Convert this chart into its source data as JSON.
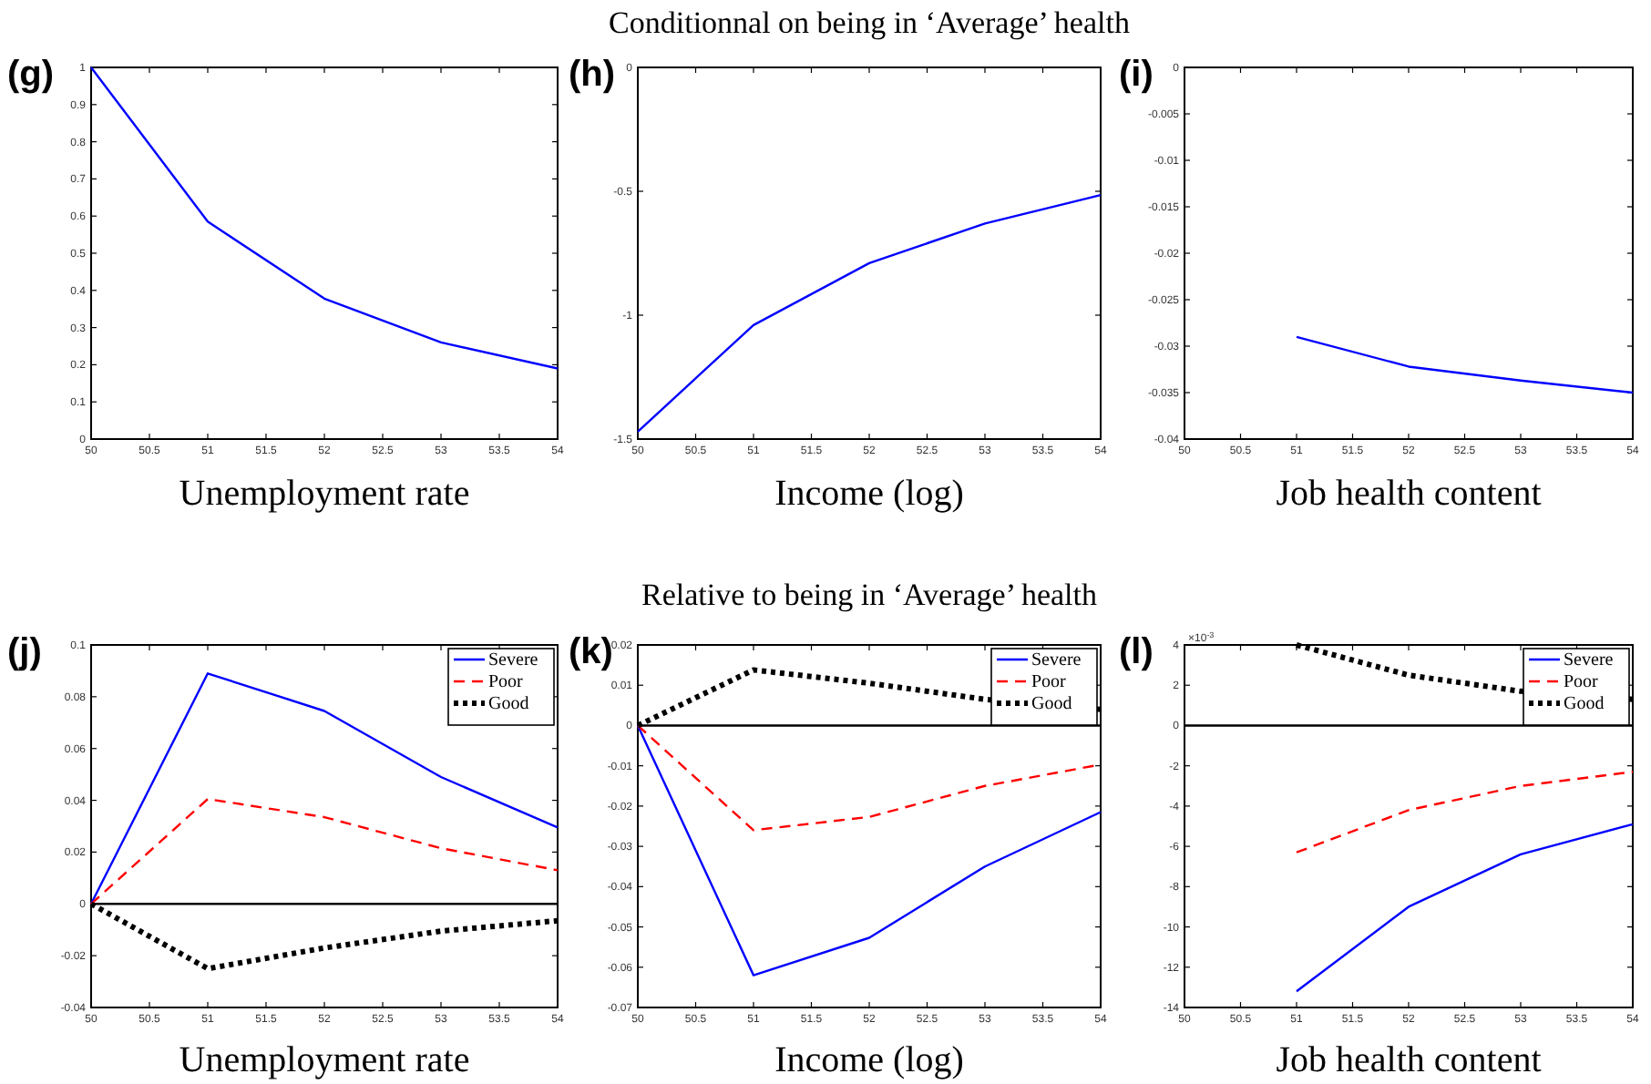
{
  "chart_data": [
    {
      "type": "line",
      "xlabel": "Unemployment rate",
      "annotations": [
        "(g)"
      ],
      "x": [
        50,
        51,
        52,
        53,
        54
      ],
      "xlim": [
        50,
        54
      ],
      "xticks": [
        50,
        50.5,
        51,
        51.5,
        52,
        52.5,
        53,
        53.5,
        54
      ],
      "ylim": [
        0,
        1
      ],
      "yticks": [
        0,
        0.1,
        0.2,
        0.3,
        0.4,
        0.5,
        0.6,
        0.7,
        0.8,
        0.9,
        1
      ],
      "grid": false,
      "legend": false,
      "series": [
        {
          "color": "#0000ff",
          "line_style": "solid",
          "values": [
            1,
            0.585,
            0.378,
            0.26,
            0.19
          ]
        }
      ]
    },
    {
      "type": "line",
      "title": "Conditionnal on being in ‘Average’ health",
      "xlabel": "Income (log)",
      "annotations": [
        "(h)"
      ],
      "x": [
        50,
        51,
        52,
        53,
        54
      ],
      "xlim": [
        50,
        54
      ],
      "xticks": [
        50,
        50.5,
        51,
        51.5,
        52,
        52.5,
        53,
        53.5,
        54
      ],
      "ylim": [
        -1.5,
        0
      ],
      "yticks": [
        -1.5,
        -1,
        -0.5,
        0
      ],
      "grid": false,
      "legend": false,
      "series": [
        {
          "color": "#0000ff",
          "line_style": "solid",
          "values": [
            -1.47,
            -1.04,
            -0.79,
            -0.63,
            -0.515
          ]
        }
      ]
    },
    {
      "type": "line",
      "xlabel": "Job health content",
      "annotations": [
        "(i)"
      ],
      "xlim": [
        50,
        54
      ],
      "xticks": [
        50,
        50.5,
        51,
        51.5,
        52,
        52.5,
        53,
        53.5,
        54
      ],
      "ylim": [
        -0.04,
        0
      ],
      "yticks": [
        -0.04,
        -0.035,
        -0.03,
        -0.025,
        -0.02,
        -0.015,
        -0.01,
        -0.005,
        0
      ],
      "grid": false,
      "legend": false,
      "series": [
        {
          "color": "#0000ff",
          "line_style": "solid",
          "x": [
            51,
            52,
            53,
            54
          ],
          "values": [
            -0.029,
            -0.0322,
            -0.0337,
            -0.035
          ]
        }
      ]
    },
    {
      "type": "line",
      "xlabel": "Unemployment rate",
      "annotations": [
        "(j)"
      ],
      "x": [
        50,
        51,
        52,
        53,
        54
      ],
      "xlim": [
        50,
        54
      ],
      "xticks": [
        50,
        50.5,
        51,
        51.5,
        52,
        52.5,
        53,
        53.5,
        54
      ],
      "ylim": [
        -0.04,
        0.1
      ],
      "yticks": [
        -0.04,
        -0.02,
        0,
        0.02,
        0.04,
        0.06,
        0.08,
        0.1
      ],
      "grid": false,
      "legend": "top right",
      "ref_lines": [
        {
          "axis": "y",
          "value": 0,
          "color": "#000000"
        }
      ],
      "series": [
        {
          "name": "Severe",
          "color": "#0000ff",
          "line_style": "solid",
          "values": [
            0,
            0.089,
            0.0745,
            0.049,
            0.0295
          ]
        },
        {
          "name": "Poor",
          "color": "#ff0000",
          "line_style": "dashed",
          "values": [
            0,
            0.0405,
            0.0335,
            0.0215,
            0.013
          ]
        },
        {
          "name": "Good",
          "color": "#000000",
          "line_style": "dotted",
          "values": [
            0,
            -0.025,
            -0.017,
            -0.0105,
            -0.0065
          ]
        }
      ]
    },
    {
      "type": "line",
      "title": "Relative to being in ‘Average’ health",
      "xlabel": "Income (log)",
      "annotations": [
        "(k)"
      ],
      "x": [
        50,
        51,
        52,
        53,
        54
      ],
      "xlim": [
        50,
        54
      ],
      "xticks": [
        50,
        50.5,
        51,
        51.5,
        52,
        52.5,
        53,
        53.5,
        54
      ],
      "ylim": [
        -0.07,
        0.02
      ],
      "yticks": [
        -0.07,
        -0.06,
        -0.05,
        -0.04,
        -0.03,
        -0.02,
        -0.01,
        0,
        0.01,
        0.02
      ],
      "grid": false,
      "legend": "top right",
      "ref_lines": [
        {
          "axis": "y",
          "value": 0,
          "color": "#000000"
        }
      ],
      "series": [
        {
          "name": "Severe",
          "color": "#0000ff",
          "line_style": "solid",
          "values": [
            0,
            -0.062,
            -0.0527,
            -0.035,
            -0.0215
          ]
        },
        {
          "name": "Poor",
          "color": "#ff0000",
          "line_style": "dashed",
          "values": [
            0,
            -0.026,
            -0.0227,
            -0.015,
            -0.0097
          ]
        },
        {
          "name": "Good",
          "color": "#000000",
          "line_style": "dotted",
          "values": [
            0,
            0.0138,
            0.0105,
            0.0065,
            0.004
          ]
        }
      ]
    },
    {
      "type": "line",
      "xlabel": "Job health content",
      "annotations": [
        "(l)",
        "×10$^{-3}$"
      ],
      "xlim": [
        50,
        54
      ],
      "xticks": [
        50,
        50.5,
        51,
        51.5,
        52,
        52.5,
        53,
        53.5,
        54
      ],
      "ylim": [
        -14,
        4
      ],
      "yticks": [
        -14,
        -12,
        -10,
        -8,
        -6,
        -4,
        -2,
        0,
        2,
        4
      ],
      "grid": false,
      "legend": "top right",
      "ref_lines": [
        {
          "axis": "y",
          "value": 0,
          "color": "#000000"
        }
      ],
      "series": [
        {
          "name": "Severe",
          "color": "#0000ff",
          "line_style": "solid",
          "x": [
            51,
            52,
            53,
            54
          ],
          "values": [
            -13.2,
            -9,
            -6.4,
            -4.9
          ]
        },
        {
          "name": "Poor",
          "color": "#ff0000",
          "line_style": "dashed",
          "x": [
            51,
            52,
            53,
            54
          ],
          "values": [
            -6.3,
            -4.2,
            -3,
            -2.3
          ]
        },
        {
          "name": "Good",
          "color": "#000000",
          "line_style": "dotted",
          "x": [
            51,
            52,
            53,
            54
          ],
          "values": [
            4,
            2.5,
            1.7,
            1.3
          ]
        }
      ]
    }
  ]
}
